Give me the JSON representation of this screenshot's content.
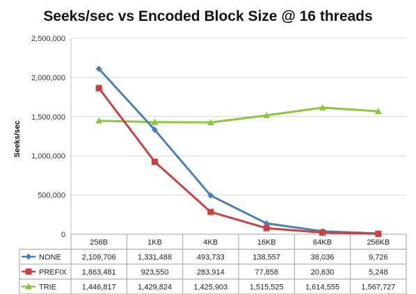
{
  "chart_data": {
    "type": "line",
    "title": "Seeks/sec vs Encoded Block Size @ 16 threads",
    "xlabel": "",
    "ylabel": "Seeks/sec",
    "categories": [
      "256B",
      "1KB",
      "4KB",
      "16KB",
      "64KB",
      "256KB"
    ],
    "ylim": [
      0,
      2500000
    ],
    "yticks": [
      0,
      500000,
      1000000,
      1500000,
      2000000,
      2500000
    ],
    "ytick_labels": [
      "0",
      "500,000",
      "1,000,000",
      "1,500,000",
      "2,000,000",
      "2,500,000"
    ],
    "grid": true,
    "legend": "data-table-rows",
    "series": [
      {
        "name": "NONE",
        "color": "#4a7ebb",
        "marker": "diamond",
        "values": [
          2109706,
          1331488,
          493733,
          138557,
          38036,
          9726
        ],
        "labels": [
          "2,109,706",
          "1,331,488",
          "493,733",
          "138,557",
          "38,036",
          "9,726"
        ]
      },
      {
        "name": "PREFIX",
        "color": "#cc3f3f",
        "marker": "square",
        "values": [
          1863481,
          923550,
          283914,
          77858,
          20630,
          5248
        ],
        "labels": [
          "1,863,481",
          "923,550",
          "283,914",
          "77,858",
          "20,630",
          "5,248"
        ]
      },
      {
        "name": "TRIE",
        "color": "#8cc63f",
        "marker": "triangle",
        "values": [
          1446817,
          1429824,
          1425903,
          1515525,
          1614555,
          1567727
        ],
        "labels": [
          "1,446,817",
          "1,429,824",
          "1,425,903",
          "1,515,525",
          "1,614,555",
          "1,567,727"
        ]
      }
    ]
  }
}
